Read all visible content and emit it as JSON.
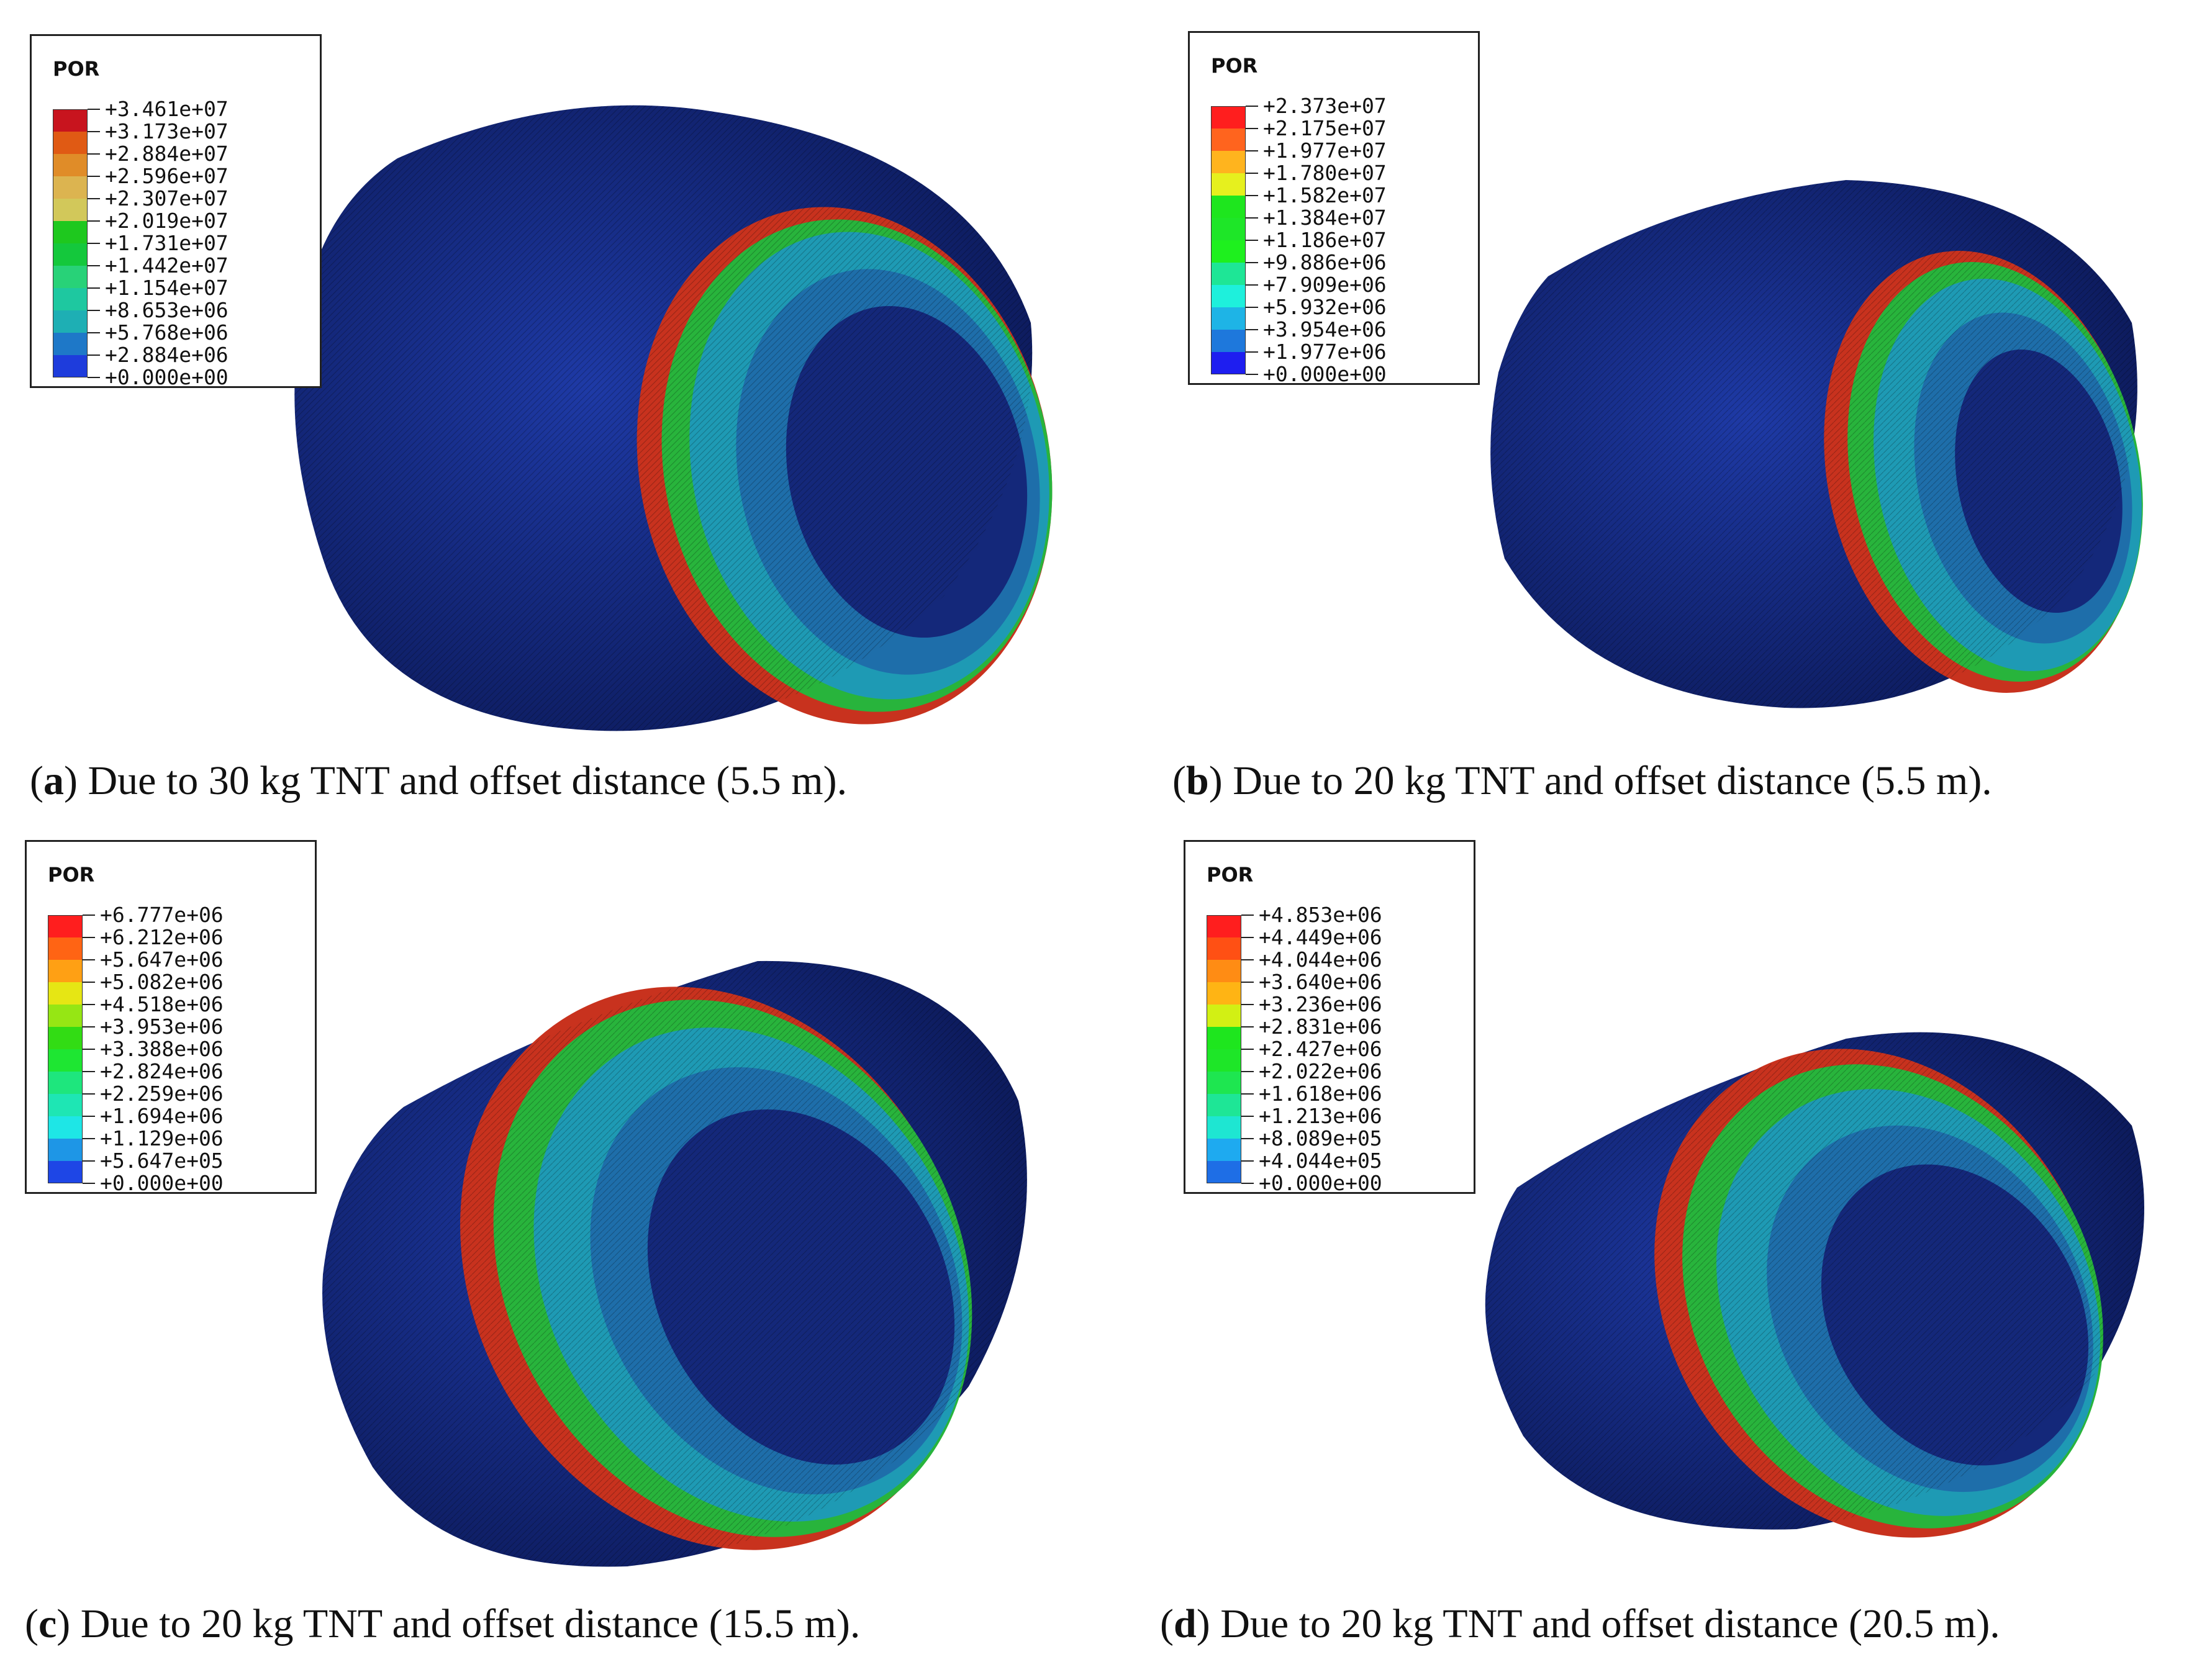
{
  "legend_title": "POR",
  "panels": [
    {
      "id": "a",
      "caption_letter": "a",
      "caption_text": "Due to 30 kg TNT and offset distance (5.5 m).",
      "legend_values": [
        "+3.461e+07",
        "+3.173e+07",
        "+2.884e+07",
        "+2.596e+07",
        "+2.307e+07",
        "+2.019e+07",
        "+1.731e+07",
        "+1.442e+07",
        "+1.154e+07",
        "+8.653e+06",
        "+5.768e+06",
        "+2.884e+06",
        "+0.000e+00"
      ],
      "legend_colors": [
        "#c8141e",
        "#e05a14",
        "#e08c28",
        "#dcb450",
        "#d2c85a",
        "#1ec81e",
        "#14c83c",
        "#28d278",
        "#1ec8a0",
        "#1eafb4",
        "#1e78c8",
        "#1e3cdc"
      ]
    },
    {
      "id": "b",
      "caption_letter": "b",
      "caption_text": "Due to 20 kg TNT and offset distance (5.5 m).",
      "legend_values": [
        "+2.373e+07",
        "+2.175e+07",
        "+1.977e+07",
        "+1.780e+07",
        "+1.582e+07",
        "+1.384e+07",
        "+1.186e+07",
        "+9.886e+06",
        "+7.909e+06",
        "+5.932e+06",
        "+3.954e+06",
        "+1.977e+06",
        "+0.000e+00"
      ],
      "legend_colors": [
        "#ff1e1e",
        "#ff641e",
        "#ffb41e",
        "#e6f01e",
        "#1ee61e",
        "#1ee628",
        "#1ef01e",
        "#1ee696",
        "#1ef0dc",
        "#1eb4e6",
        "#1e78dc",
        "#1e1ef0"
      ]
    },
    {
      "id": "c",
      "caption_letter": "c",
      "caption_text": "Due to 20 kg TNT and offset distance (15.5 m).",
      "legend_values": [
        "+6.777e+06",
        "+6.212e+06",
        "+5.647e+06",
        "+5.082e+06",
        "+4.518e+06",
        "+3.953e+06",
        "+3.388e+06",
        "+2.824e+06",
        "+2.259e+06",
        "+1.694e+06",
        "+1.129e+06",
        "+5.647e+05",
        "+0.000e+00"
      ],
      "legend_colors": [
        "#ff1e1e",
        "#ff6414",
        "#ffa014",
        "#e6e614",
        "#96e614",
        "#32dc14",
        "#1ee632",
        "#1ee67d",
        "#1ee6b4",
        "#1ee6e6",
        "#1e96e6",
        "#1e46e6"
      ]
    },
    {
      "id": "d",
      "caption_letter": "d",
      "caption_text": "Due to 20 kg TNT and offset distance (20.5 m).",
      "legend_values": [
        "+4.853e+06",
        "+4.449e+06",
        "+4.044e+06",
        "+3.640e+06",
        "+3.236e+06",
        "+2.831e+06",
        "+2.427e+06",
        "+2.022e+06",
        "+1.618e+06",
        "+1.213e+06",
        "+8.089e+05",
        "+4.044e+05",
        "+0.000e+00"
      ],
      "legend_colors": [
        "#ff1e1e",
        "#ff5014",
        "#ff8c14",
        "#ffb414",
        "#d2f014",
        "#1ee61e",
        "#1ee628",
        "#1ee650",
        "#1ee696",
        "#1ee6d2",
        "#1eaaf0",
        "#1e6ee6"
      ]
    }
  ],
  "colors": {
    "shell_blue": "#14236e",
    "band_red": "#c83214"
  }
}
